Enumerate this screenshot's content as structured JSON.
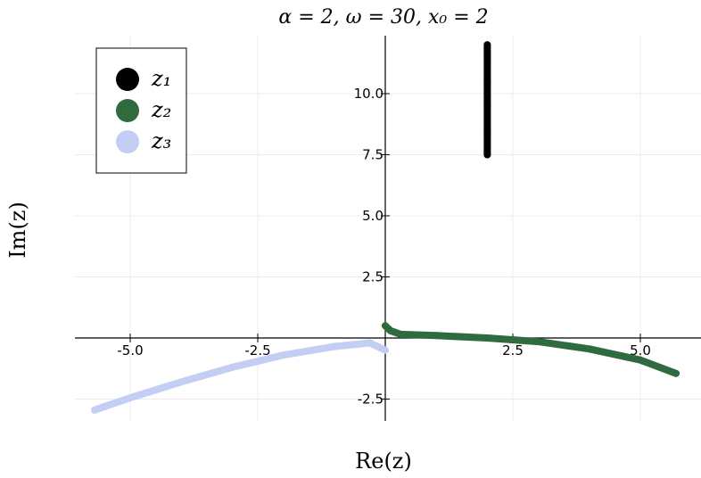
{
  "chart_data": {
    "type": "scatter",
    "title": "α = 2, ω = 30, x₀ = 2",
    "xlabel": "Re(z)",
    "ylabel": "Im(z)",
    "xlim": [
      -6.1,
      6.1
    ],
    "ylim": [
      -3.4,
      12.4
    ],
    "x_ticks": [
      -5.0,
      -2.5,
      2.5,
      5.0
    ],
    "x_tick_labels": [
      "-5.0",
      "-2.5",
      "2.5",
      "5.0"
    ],
    "y_ticks": [
      -2.5,
      2.5,
      5.0,
      7.5,
      10.0
    ],
    "y_tick_labels": [
      "-2.5",
      "2.5",
      "5.0",
      "7.5",
      "10.0"
    ],
    "grid": true,
    "legend_position": "top-left",
    "series": [
      {
        "name": "z₁",
        "color": "#000000",
        "points": [
          [
            2.0,
            7.5
          ],
          [
            2.0,
            8.5
          ],
          [
            2.0,
            9.5
          ],
          [
            2.0,
            10.5
          ],
          [
            2.0,
            11.5
          ],
          [
            2.0,
            12.0
          ]
        ]
      },
      {
        "name": "z₂",
        "color": "#2f6b3f",
        "points": [
          [
            0.0,
            0.5
          ],
          [
            0.1,
            0.3
          ],
          [
            0.3,
            0.15
          ],
          [
            1.0,
            0.1
          ],
          [
            2.0,
            0.0
          ],
          [
            3.0,
            -0.15
          ],
          [
            4.0,
            -0.45
          ],
          [
            5.0,
            -0.9
          ],
          [
            5.7,
            -1.45
          ]
        ]
      },
      {
        "name": "z₃",
        "color": "#c3cef5",
        "points": [
          [
            -5.7,
            -2.95
          ],
          [
            -5.0,
            -2.45
          ],
          [
            -4.0,
            -1.8
          ],
          [
            -3.0,
            -1.2
          ],
          [
            -2.0,
            -0.7
          ],
          [
            -1.0,
            -0.35
          ],
          [
            -0.3,
            -0.2
          ],
          [
            0.0,
            -0.5
          ]
        ]
      }
    ]
  }
}
